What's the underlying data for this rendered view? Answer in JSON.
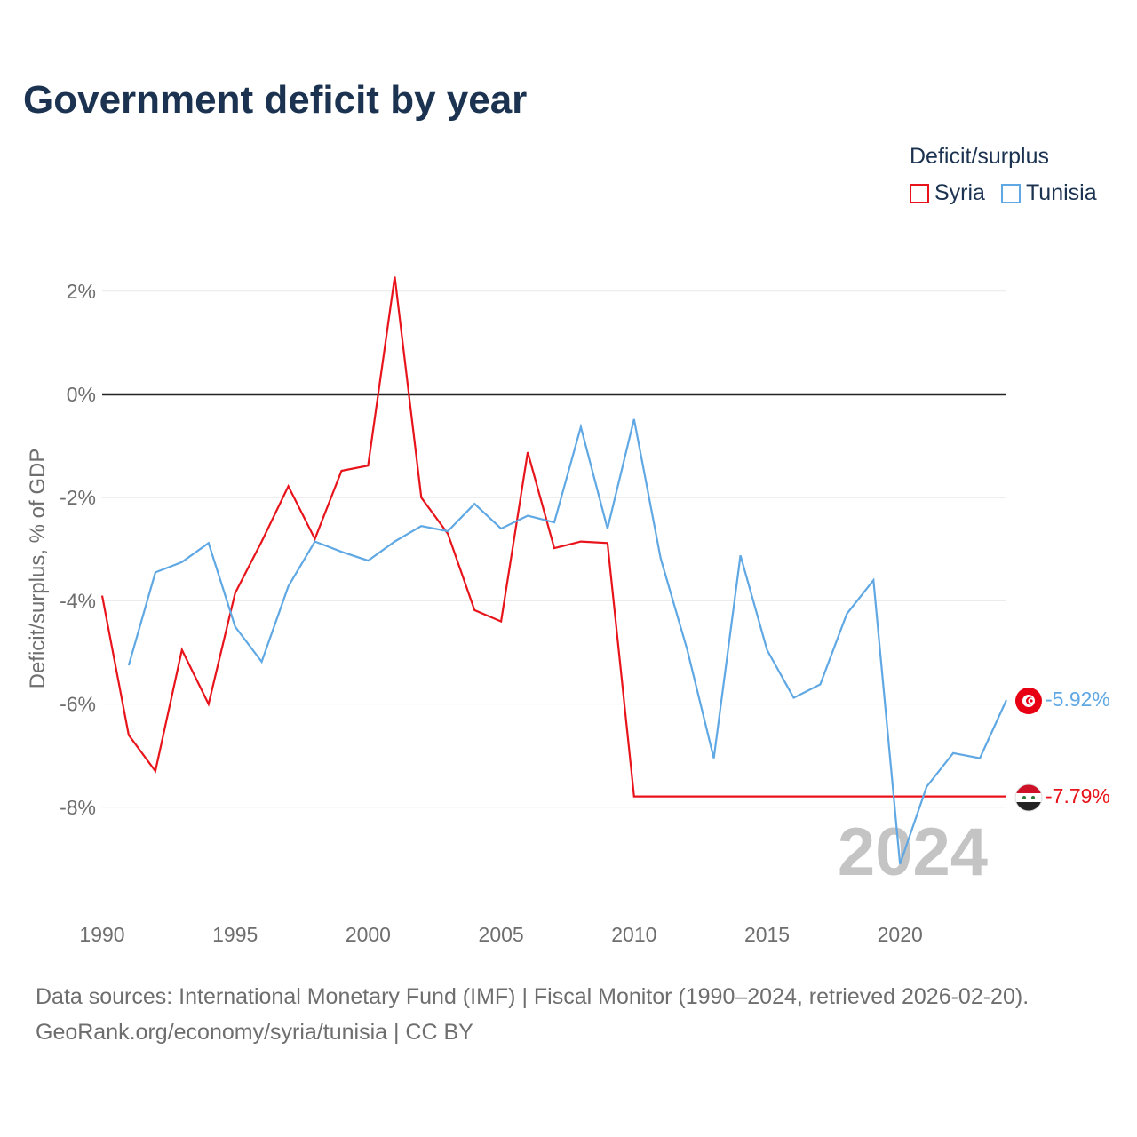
{
  "chart_data": {
    "type": "line",
    "title": "Government deficit by year",
    "ylabel": "Deficit/surplus, % of GDP",
    "xlabel": "",
    "xlim": [
      1990,
      2024
    ],
    "ylim": [
      -10,
      3
    ],
    "x_ticks": [
      1990,
      1995,
      2000,
      2005,
      2010,
      2015,
      2020
    ],
    "y_ticks": [
      {
        "value": 2,
        "label": "2%"
      },
      {
        "value": 0,
        "label": "0%"
      },
      {
        "value": -2,
        "label": "-2%"
      },
      {
        "value": -4,
        "label": "-4%"
      },
      {
        "value": -6,
        "label": "-6%"
      },
      {
        "value": -8,
        "label": "-8%"
      }
    ],
    "legend_title": "Deficit/surplus",
    "legend_position": "top-right",
    "watermark_year": "2024",
    "series": [
      {
        "name": "Syria",
        "color": "#e8141b",
        "end_label": "-7.79%",
        "flag": "syria-flag",
        "points": [
          [
            1990,
            -3.9
          ],
          [
            1991,
            -6.6
          ],
          [
            1992,
            -7.3
          ],
          [
            1993,
            -4.95
          ],
          [
            1994,
            -6.0
          ],
          [
            1995,
            -3.85
          ],
          [
            1996,
            -2.85
          ],
          [
            1997,
            -1.78
          ],
          [
            1998,
            -2.8
          ],
          [
            1999,
            -1.48
          ],
          [
            2000,
            -1.38
          ],
          [
            2001,
            2.28
          ],
          [
            2002,
            -2.0
          ],
          [
            2003,
            -2.7
          ],
          [
            2004,
            -4.18
          ],
          [
            2005,
            -4.4
          ],
          [
            2006,
            -1.12
          ],
          [
            2007,
            -2.98
          ],
          [
            2008,
            -2.85
          ],
          [
            2009,
            -2.88
          ],
          [
            2010,
            -7.79
          ],
          [
            2011,
            -7.79
          ],
          [
            2012,
            -7.79
          ],
          [
            2013,
            -7.79
          ],
          [
            2014,
            -7.79
          ],
          [
            2015,
            -7.79
          ],
          [
            2016,
            -7.79
          ],
          [
            2017,
            -7.79
          ],
          [
            2018,
            -7.79
          ],
          [
            2019,
            -7.79
          ],
          [
            2020,
            -7.79
          ],
          [
            2021,
            -7.79
          ],
          [
            2022,
            -7.79
          ],
          [
            2023,
            -7.79
          ],
          [
            2024,
            -7.79
          ]
        ]
      },
      {
        "name": "Tunisia",
        "color": "#5fa8e4",
        "end_label": "-5.92%",
        "flag": "tunisia-flag",
        "points": [
          [
            1991,
            -5.25
          ],
          [
            1992,
            -3.45
          ],
          [
            1993,
            -3.25
          ],
          [
            1994,
            -2.88
          ],
          [
            1995,
            -4.5
          ],
          [
            1996,
            -5.18
          ],
          [
            1997,
            -3.72
          ],
          [
            1998,
            -2.85
          ],
          [
            1999,
            -3.05
          ],
          [
            2000,
            -3.22
          ],
          [
            2001,
            -2.85
          ],
          [
            2002,
            -2.55
          ],
          [
            2003,
            -2.65
          ],
          [
            2004,
            -2.12
          ],
          [
            2005,
            -2.6
          ],
          [
            2006,
            -2.35
          ],
          [
            2007,
            -2.48
          ],
          [
            2008,
            -0.63
          ],
          [
            2009,
            -2.6
          ],
          [
            2010,
            -0.48
          ],
          [
            2011,
            -3.18
          ],
          [
            2012,
            -4.95
          ],
          [
            2013,
            -7.05
          ],
          [
            2014,
            -3.12
          ],
          [
            2015,
            -4.95
          ],
          [
            2016,
            -5.88
          ],
          [
            2017,
            -5.62
          ],
          [
            2018,
            -4.25
          ],
          [
            2019,
            -3.6
          ],
          [
            2020,
            -9.1
          ],
          [
            2021,
            -7.6
          ],
          [
            2022,
            -6.95
          ],
          [
            2023,
            -7.05
          ],
          [
            2024,
            -5.92
          ]
        ]
      }
    ]
  },
  "footer": {
    "source_line_1": "Data sources: International Monetary Fund (IMF) | Fiscal Monitor (1990–2024, retrieved 2026-02-20).",
    "source_line_2": "GeoRank.org/economy/syria/tunisia | CC BY"
  }
}
